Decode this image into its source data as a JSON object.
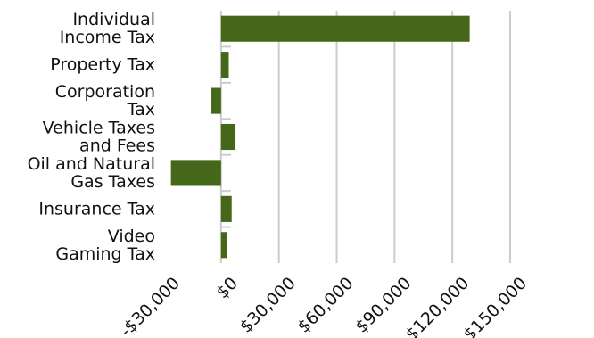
{
  "chart_data": {
    "type": "bar",
    "orientation": "horizontal",
    "categories": [
      [
        "Individual",
        "Income Tax"
      ],
      [
        "Property Tax"
      ],
      [
        "Corporation",
        "Tax"
      ],
      [
        "Vehicle Taxes",
        "and Fees"
      ],
      [
        "Oil and Natural",
        "Gas Taxes"
      ],
      [
        "Insurance Tax"
      ],
      [
        "Video",
        "Gaming Tax"
      ]
    ],
    "values": [
      129000,
      4000,
      -5000,
      7500,
      -26000,
      5500,
      3000
    ],
    "xlim": [
      -30000,
      150000
    ],
    "ticks": [
      -30000,
      0,
      30000,
      60000,
      90000,
      120000,
      150000
    ],
    "tick_labels": [
      "-$30,000",
      "$0",
      "$30,000",
      "$60,000",
      "$90,000",
      "$120,000",
      "$150,000"
    ],
    "bar_color": "#456719",
    "grid": true,
    "title": "",
    "xlabel": "",
    "ylabel": ""
  }
}
